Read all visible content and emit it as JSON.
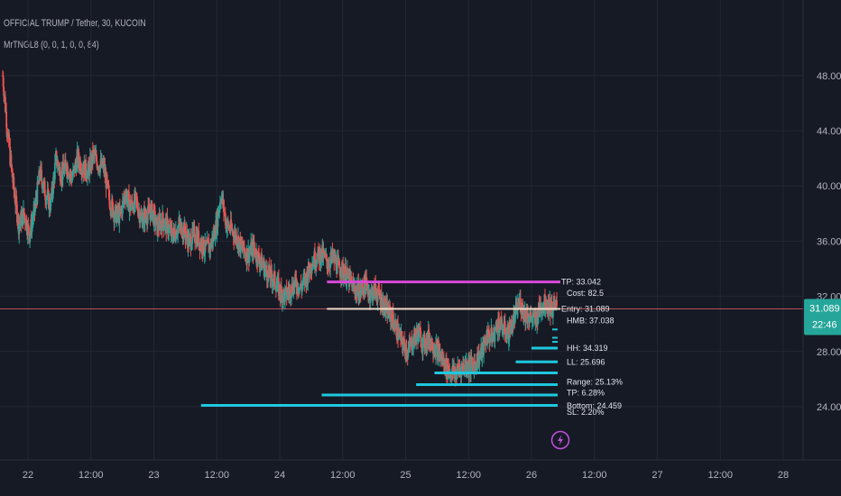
{
  "header": {
    "symbol_line": "OFFICIAL TRUMP / Tether, 30, KUCOIN",
    "indicator_line": "MrTNGL8 (0, 0, 1, 0, 0, 84)"
  },
  "colors": {
    "background": "#161a25",
    "grid": "#232733",
    "candle_up": "#26a69a",
    "candle_down": "#ef5350",
    "price_line": "#b5505a",
    "tp_line": "#d84ad8",
    "entry_line": "#f0d9c8",
    "level_line": "#1ec8df",
    "axis_text": "#b2b5be",
    "price_tag_bg": "#26a69a",
    "bolt_icon": "#c450e0"
  },
  "price_tag": {
    "price": "31.089",
    "countdown": "22:46"
  },
  "bolt_icon": "lightning-bolt-icon",
  "chart_data": {
    "type": "candlestick",
    "title": "",
    "y_ticks": [
      "48.000",
      "44.000",
      "40.000",
      "36.000",
      "32.000",
      "28.000",
      "24.000"
    ],
    "x_ticks": [
      "22",
      "12:00",
      "23",
      "12:00",
      "24",
      "12:00",
      "25",
      "12:00",
      "26",
      "12:00",
      "27",
      "12:00",
      "28"
    ],
    "ylim": [
      21.0,
      52.0
    ],
    "grid": true,
    "current_price": 31.089,
    "candles": [
      [
        48.0,
        43.5,
        40.0,
        37.2,
        38.0,
        36.5,
        38.2,
        41.0,
        39.5,
        38.6
      ],
      [
        42.0,
        40.8,
        41.5,
        40.5,
        42.0,
        41.4,
        41.0,
        42.2,
        41.6,
        41.3
      ],
      [
        39.0,
        38.0,
        37.8,
        39.5,
        38.5,
        38.9,
        37.6,
        37.9,
        38.2,
        37.0
      ],
      [
        37.5,
        37.0,
        36.4,
        37.1,
        36.8,
        35.9,
        36.5,
        36.0,
        35.4,
        35.6
      ],
      [
        37.0,
        39.4,
        37.2,
        36.8,
        36.2,
        35.4,
        35.0,
        35.5,
        34.8,
        34.1
      ],
      [
        33.5,
        33.2,
        32.4,
        32.0,
        32.5,
        33.0,
        32.6,
        33.4,
        34.5,
        34.9
      ],
      [
        35.0,
        34.4,
        34.8,
        34.1,
        33.8,
        33.2,
        32.6,
        32.3,
        32.9,
        32.2
      ],
      [
        32.4,
        31.8,
        31.0,
        30.5,
        29.5,
        28.6,
        28.0,
        28.8,
        29.4,
        28.5
      ],
      [
        29.0,
        28.4,
        27.8,
        27.0,
        26.5,
        26.4,
        26.8,
        27.1,
        26.9,
        27.4
      ],
      [
        28.0,
        29.2,
        29.0,
        30.1,
        29.6,
        29.3,
        30.4,
        31.6,
        30.8,
        30.5
      ],
      [
        30.2,
        31.3,
        31.6,
        31.1,
        31.2
      ]
    ],
    "lines": [
      {
        "label": "TP: 33.042",
        "price": 33.042,
        "kind": "tp",
        "x_from": "24 09:00",
        "x_to": "26 05:30"
      },
      {
        "label": "Entry: 31.089",
        "price": 31.089,
        "kind": "entry",
        "x_from": "24 09:00",
        "x_to": "26 05:30"
      }
    ],
    "annotations": [
      {
        "text": "Cost: 82.5",
        "price": 32.25
      },
      {
        "text": "HMB: 37.038",
        "price": 30.25
      },
      {
        "text": "HH: 34.319",
        "price": 28.25
      },
      {
        "text": "LL: 25.696",
        "price": 27.25
      },
      {
        "text": "Range: 25.13%",
        "price": 25.8
      },
      {
        "text": "TP: 6.28%",
        "price": 25.0
      },
      {
        "text": "Bottom: 24.459",
        "price": 24.05
      },
      {
        "text": "SL: 2.20%",
        "price": 23.6
      }
    ],
    "level_bars": [
      {
        "label": "HH: 34.319",
        "price": 28.25,
        "x_from": "26 00:00"
      },
      {
        "label": "LL: 25.696",
        "price": 27.25,
        "x_from": "25 21:00"
      },
      {
        "label": "Range: 25.13%",
        "price": 26.45,
        "x_from": "25 05:30"
      },
      {
        "label": "TP: 6.28%",
        "price": 25.6,
        "x_from": "25 02:00"
      },
      {
        "label": "Bottom: 24.459",
        "price": 24.85,
        "x_from": "24 08:00"
      },
      {
        "label": "SL: 2.20%",
        "price": 24.1,
        "x_from": "23 09:00"
      }
    ]
  }
}
